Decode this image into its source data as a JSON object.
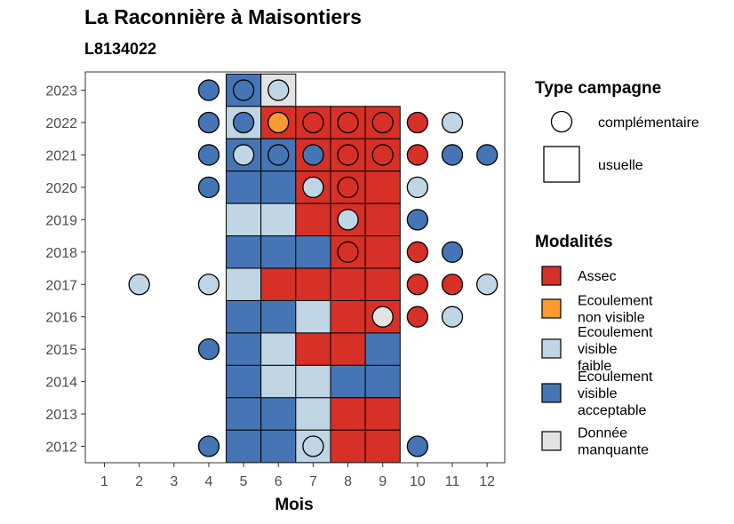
{
  "chart_data": {
    "type": "heatmap",
    "title": "La Raconnière à Maisontiers",
    "subtitle": "L8134022",
    "xlabel": "Mois",
    "ylabel": "",
    "x_ticks": [
      "1",
      "2",
      "3",
      "4",
      "5",
      "6",
      "7",
      "8",
      "9",
      "10",
      "11",
      "12"
    ],
    "y_ticks": [
      "2012",
      "2013",
      "2014",
      "2015",
      "2016",
      "2017",
      "2018",
      "2019",
      "2020",
      "2021",
      "2022",
      "2023"
    ],
    "grid": false,
    "colors": {
      "Assec": "#d73027",
      "Ecoulement non visible": "#fd9a31",
      "Ecoulement visible faible": "#c0d6e4",
      "Ecoulement visible acceptable": "#4575b4",
      "Donnée manquante": "#e3e3e3"
    },
    "legend_campaign": {
      "title": "Type campagne",
      "items": [
        {
          "label": "complémentaire",
          "shape": "circle"
        },
        {
          "label": "usuelle",
          "shape": "square"
        }
      ]
    },
    "legend_modalites": {
      "title": "Modalités",
      "items": [
        {
          "key": "Assec",
          "lines": [
            "Assec"
          ]
        },
        {
          "key": "Ecoulement non visible",
          "lines": [
            "Ecoulement",
            "non visible"
          ]
        },
        {
          "key": "Ecoulement visible faible",
          "lines": [
            "Ecoulement",
            "visible",
            "faible"
          ]
        },
        {
          "key": "Ecoulement visible acceptable",
          "lines": [
            "Ecoulement",
            "visible",
            "acceptable"
          ]
        },
        {
          "key": "Donnée manquante",
          "lines": [
            "Donnée",
            "manquante"
          ]
        }
      ]
    },
    "usuelle": [
      {
        "year": 2023,
        "month": 5,
        "modalite": "Ecoulement visible acceptable"
      },
      {
        "year": 2023,
        "month": 6,
        "modalite": "Donnée manquante"
      },
      {
        "year": 2022,
        "month": 5,
        "modalite": "Ecoulement visible faible"
      },
      {
        "year": 2022,
        "month": 6,
        "modalite": "Assec"
      },
      {
        "year": 2022,
        "month": 7,
        "modalite": "Assec"
      },
      {
        "year": 2022,
        "month": 8,
        "modalite": "Assec"
      },
      {
        "year": 2022,
        "month": 9,
        "modalite": "Assec"
      },
      {
        "year": 2021,
        "month": 5,
        "modalite": "Ecoulement visible acceptable"
      },
      {
        "year": 2021,
        "month": 6,
        "modalite": "Ecoulement visible acceptable"
      },
      {
        "year": 2021,
        "month": 7,
        "modalite": "Assec"
      },
      {
        "year": 2021,
        "month": 8,
        "modalite": "Assec"
      },
      {
        "year": 2021,
        "month": 9,
        "modalite": "Assec"
      },
      {
        "year": 2020,
        "month": 5,
        "modalite": "Ecoulement visible acceptable"
      },
      {
        "year": 2020,
        "month": 6,
        "modalite": "Ecoulement visible acceptable"
      },
      {
        "year": 2020,
        "month": 7,
        "modalite": "Assec"
      },
      {
        "year": 2020,
        "month": 8,
        "modalite": "Assec"
      },
      {
        "year": 2020,
        "month": 9,
        "modalite": "Assec"
      },
      {
        "year": 2019,
        "month": 5,
        "modalite": "Ecoulement visible faible"
      },
      {
        "year": 2019,
        "month": 6,
        "modalite": "Ecoulement visible faible"
      },
      {
        "year": 2019,
        "month": 7,
        "modalite": "Assec"
      },
      {
        "year": 2019,
        "month": 8,
        "modalite": "Assec"
      },
      {
        "year": 2019,
        "month": 9,
        "modalite": "Assec"
      },
      {
        "year": 2018,
        "month": 5,
        "modalite": "Ecoulement visible acceptable"
      },
      {
        "year": 2018,
        "month": 6,
        "modalite": "Ecoulement visible acceptable"
      },
      {
        "year": 2018,
        "month": 7,
        "modalite": "Ecoulement visible acceptable"
      },
      {
        "year": 2018,
        "month": 8,
        "modalite": "Assec"
      },
      {
        "year": 2018,
        "month": 9,
        "modalite": "Assec"
      },
      {
        "year": 2017,
        "month": 5,
        "modalite": "Ecoulement visible faible"
      },
      {
        "year": 2017,
        "month": 6,
        "modalite": "Assec"
      },
      {
        "year": 2017,
        "month": 7,
        "modalite": "Assec"
      },
      {
        "year": 2017,
        "month": 8,
        "modalite": "Assec"
      },
      {
        "year": 2017,
        "month": 9,
        "modalite": "Assec"
      },
      {
        "year": 2016,
        "month": 5,
        "modalite": "Ecoulement visible acceptable"
      },
      {
        "year": 2016,
        "month": 6,
        "modalite": "Ecoulement visible acceptable"
      },
      {
        "year": 2016,
        "month": 7,
        "modalite": "Ecoulement visible faible"
      },
      {
        "year": 2016,
        "month": 8,
        "modalite": "Assec"
      },
      {
        "year": 2016,
        "month": 9,
        "modalite": "Assec"
      },
      {
        "year": 2015,
        "month": 5,
        "modalite": "Ecoulement visible acceptable"
      },
      {
        "year": 2015,
        "month": 6,
        "modalite": "Ecoulement visible faible"
      },
      {
        "year": 2015,
        "month": 7,
        "modalite": "Assec"
      },
      {
        "year": 2015,
        "month": 8,
        "modalite": "Assec"
      },
      {
        "year": 2015,
        "month": 9,
        "modalite": "Ecoulement visible acceptable"
      },
      {
        "year": 2014,
        "month": 5,
        "modalite": "Ecoulement visible acceptable"
      },
      {
        "year": 2014,
        "month": 6,
        "modalite": "Ecoulement visible faible"
      },
      {
        "year": 2014,
        "month": 7,
        "modalite": "Ecoulement visible faible"
      },
      {
        "year": 2014,
        "month": 8,
        "modalite": "Ecoulement visible acceptable"
      },
      {
        "year": 2014,
        "month": 9,
        "modalite": "Ecoulement visible acceptable"
      },
      {
        "year": 2013,
        "month": 5,
        "modalite": "Ecoulement visible acceptable"
      },
      {
        "year": 2013,
        "month": 6,
        "modalite": "Ecoulement visible acceptable"
      },
      {
        "year": 2013,
        "month": 7,
        "modalite": "Ecoulement visible faible"
      },
      {
        "year": 2013,
        "month": 8,
        "modalite": "Assec"
      },
      {
        "year": 2013,
        "month": 9,
        "modalite": "Assec"
      },
      {
        "year": 2012,
        "month": 5,
        "modalite": "Ecoulement visible acceptable"
      },
      {
        "year": 2012,
        "month": 6,
        "modalite": "Ecoulement visible acceptable"
      },
      {
        "year": 2012,
        "month": 7,
        "modalite": "Ecoulement visible faible"
      },
      {
        "year": 2012,
        "month": 8,
        "modalite": "Assec"
      },
      {
        "year": 2012,
        "month": 9,
        "modalite": "Assec"
      }
    ],
    "complementaire": [
      {
        "year": 2023,
        "month": 4,
        "modalite": "Ecoulement visible acceptable"
      },
      {
        "year": 2023,
        "month": 5,
        "modalite": "Ecoulement visible acceptable"
      },
      {
        "year": 2023,
        "month": 6,
        "modalite": "Ecoulement visible faible"
      },
      {
        "year": 2022,
        "month": 4,
        "modalite": "Ecoulement visible acceptable"
      },
      {
        "year": 2022,
        "month": 5,
        "modalite": "Ecoulement visible acceptable"
      },
      {
        "year": 2022,
        "month": 6,
        "modalite": "Ecoulement non visible"
      },
      {
        "year": 2022,
        "month": 7,
        "modalite": "Assec"
      },
      {
        "year": 2022,
        "month": 8,
        "modalite": "Assec"
      },
      {
        "year": 2022,
        "month": 9,
        "modalite": "Assec"
      },
      {
        "year": 2022,
        "month": 10,
        "modalite": "Assec"
      },
      {
        "year": 2022,
        "month": 11,
        "modalite": "Ecoulement visible faible"
      },
      {
        "year": 2021,
        "month": 4,
        "modalite": "Ecoulement visible acceptable"
      },
      {
        "year": 2021,
        "month": 5,
        "modalite": "Ecoulement visible faible"
      },
      {
        "year": 2021,
        "month": 6,
        "modalite": "Ecoulement visible acceptable"
      },
      {
        "year": 2021,
        "month": 7,
        "modalite": "Ecoulement visible acceptable"
      },
      {
        "year": 2021,
        "month": 8,
        "modalite": "Assec"
      },
      {
        "year": 2021,
        "month": 9,
        "modalite": "Assec"
      },
      {
        "year": 2021,
        "month": 10,
        "modalite": "Assec"
      },
      {
        "year": 2021,
        "month": 11,
        "modalite": "Ecoulement visible acceptable"
      },
      {
        "year": 2021,
        "month": 12,
        "modalite": "Ecoulement visible acceptable"
      },
      {
        "year": 2020,
        "month": 4,
        "modalite": "Ecoulement visible acceptable"
      },
      {
        "year": 2020,
        "month": 7,
        "modalite": "Ecoulement visible faible"
      },
      {
        "year": 2020,
        "month": 8,
        "modalite": "Assec"
      },
      {
        "year": 2020,
        "month": 10,
        "modalite": "Ecoulement visible faible"
      },
      {
        "year": 2019,
        "month": 8,
        "modalite": "Ecoulement visible faible"
      },
      {
        "year": 2019,
        "month": 10,
        "modalite": "Ecoulement visible acceptable"
      },
      {
        "year": 2018,
        "month": 8,
        "modalite": "Assec"
      },
      {
        "year": 2018,
        "month": 10,
        "modalite": "Assec"
      },
      {
        "year": 2018,
        "month": 11,
        "modalite": "Ecoulement visible acceptable"
      },
      {
        "year": 2017,
        "month": 2,
        "modalite": "Ecoulement visible faible"
      },
      {
        "year": 2017,
        "month": 4,
        "modalite": "Ecoulement visible faible"
      },
      {
        "year": 2017,
        "month": 10,
        "modalite": "Assec"
      },
      {
        "year": 2017,
        "month": 11,
        "modalite": "Assec"
      },
      {
        "year": 2017,
        "month": 12,
        "modalite": "Ecoulement visible faible"
      },
      {
        "year": 2016,
        "month": 9,
        "modalite": "Donnée manquante"
      },
      {
        "year": 2016,
        "month": 10,
        "modalite": "Assec"
      },
      {
        "year": 2016,
        "month": 11,
        "modalite": "Ecoulement visible faible"
      },
      {
        "year": 2015,
        "month": 4,
        "modalite": "Ecoulement visible acceptable"
      },
      {
        "year": 2012,
        "month": 4,
        "modalite": "Ecoulement visible acceptable"
      },
      {
        "year": 2012,
        "month": 7,
        "modalite": "Ecoulement visible faible"
      },
      {
        "year": 2012,
        "month": 10,
        "modalite": "Ecoulement visible acceptable"
      }
    ]
  }
}
